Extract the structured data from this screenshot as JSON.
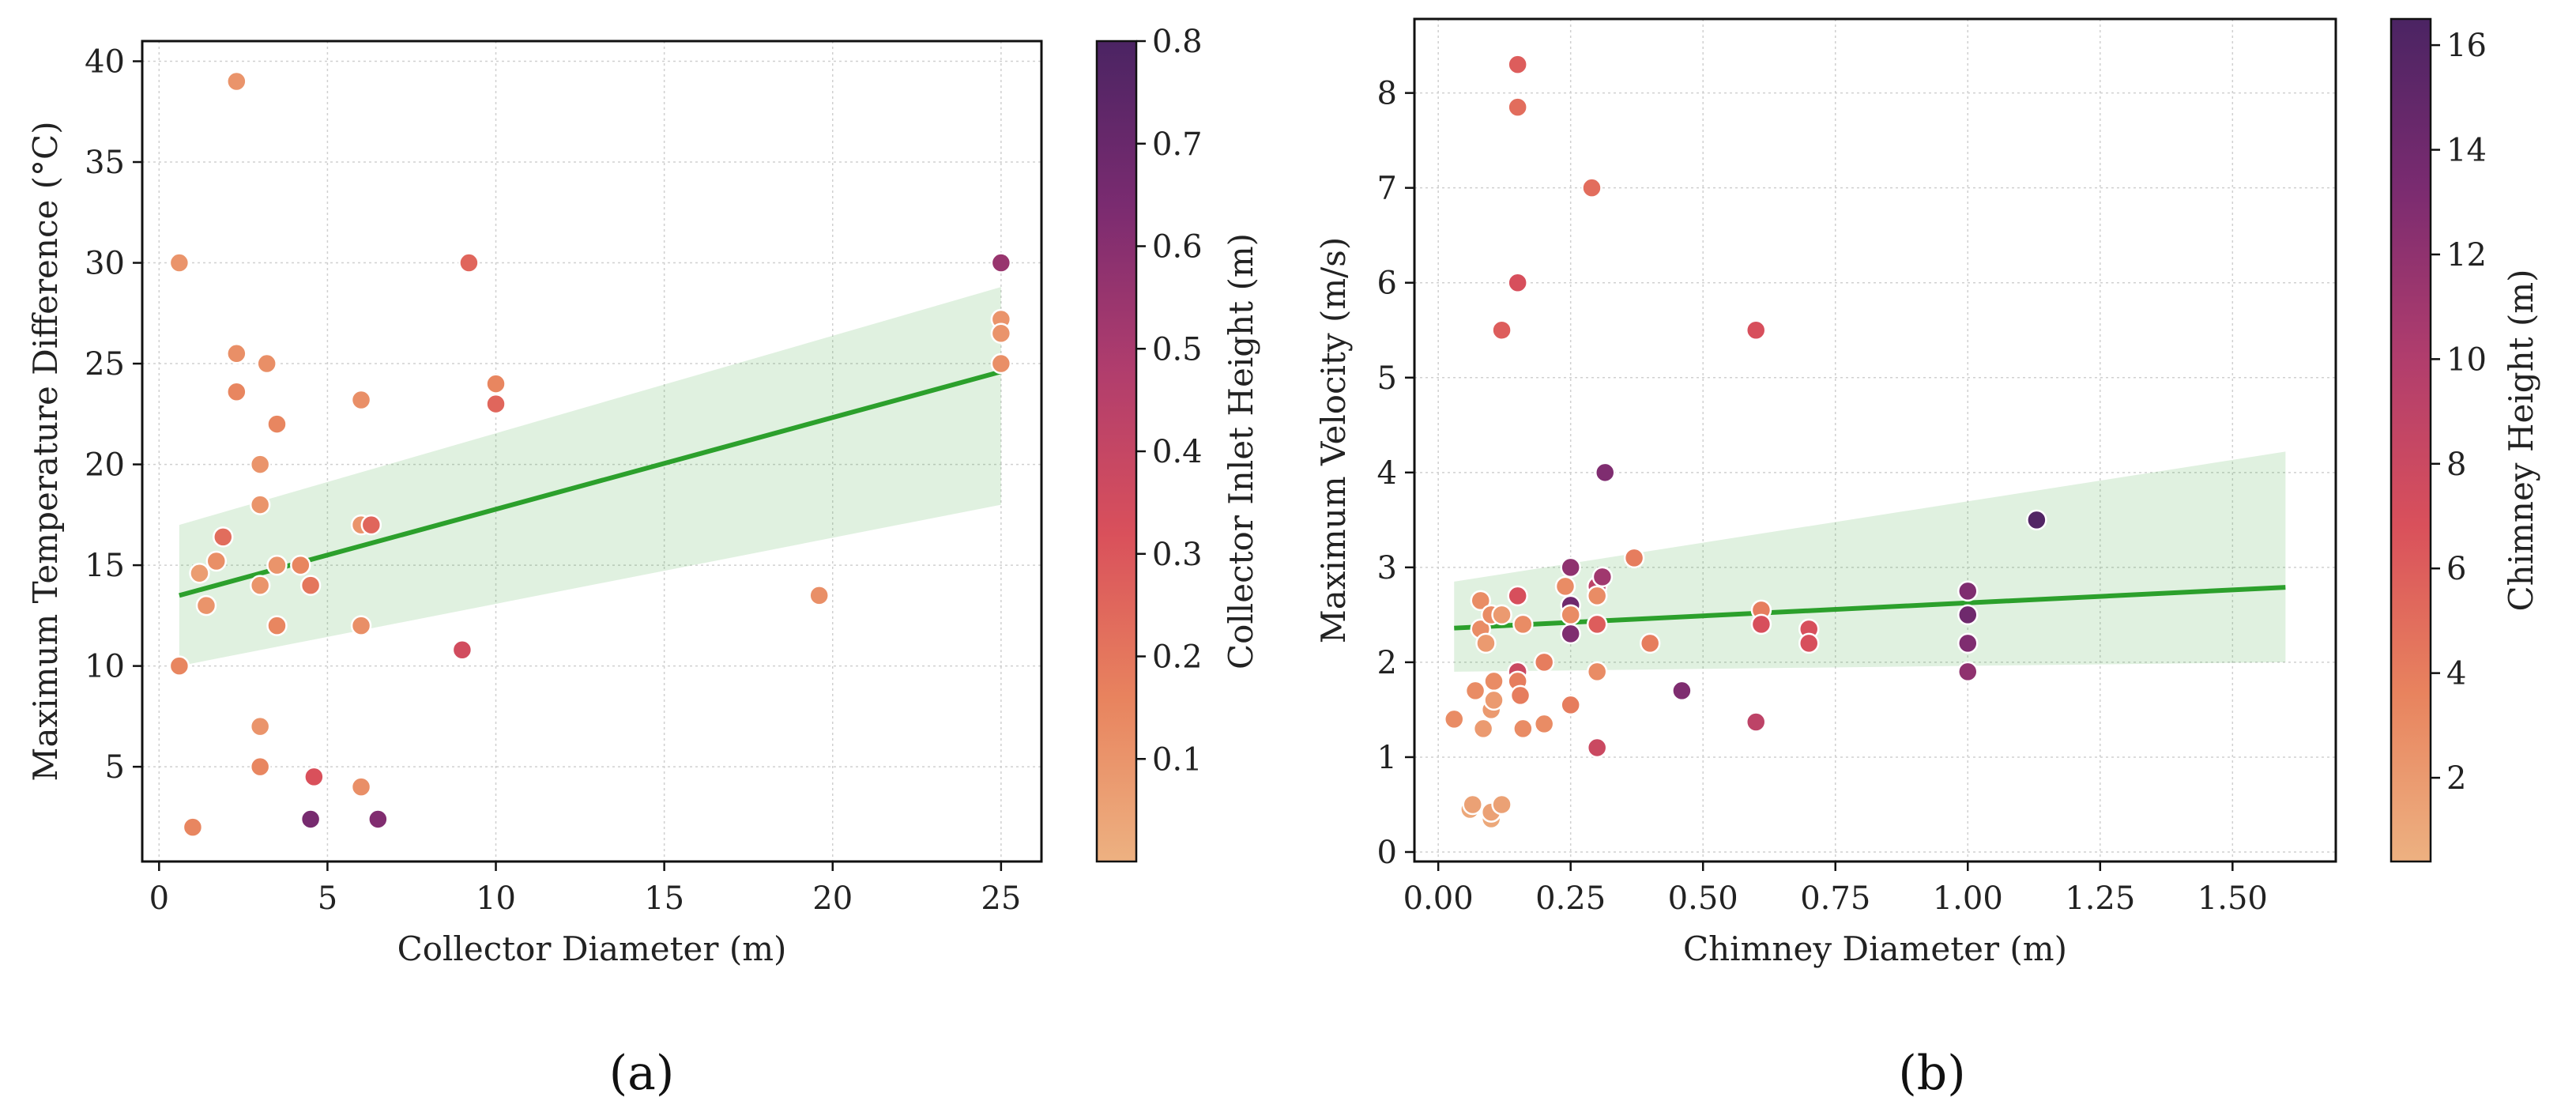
{
  "chart_data": [
    {
      "type": "scatter",
      "panel_label": "(a)",
      "xlabel": "Collector Diameter (m)",
      "ylabel": "Maximum Temperature Difference (°C)",
      "xlim": [
        -0.5,
        26.2
      ],
      "ylim": [
        0.3,
        41.0
      ],
      "xticks": [
        0,
        5,
        10,
        15,
        20,
        25
      ],
      "yticks": [
        5,
        10,
        15,
        20,
        25,
        30,
        35,
        40
      ],
      "grid": true,
      "colorbar": {
        "label": "Collector Inlet Height (m)",
        "range": [
          0.0,
          0.8
        ],
        "ticks": [
          0.1,
          0.2,
          0.3,
          0.4,
          0.5,
          0.6,
          0.7,
          0.8
        ],
        "colormap": "flare"
      },
      "regression": {
        "x": [
          0.6,
          25.0
        ],
        "y": [
          13.5,
          24.6
        ],
        "ci_lower": [
          10.0,
          18.0
        ],
        "ci_upper": [
          17.0,
          28.8
        ],
        "color": "#2ca02c"
      },
      "points": [
        {
          "x": 0.6,
          "y": 30,
          "c": 0.1
        },
        {
          "x": 0.6,
          "y": 10,
          "c": 0.15
        },
        {
          "x": 1.0,
          "y": 2,
          "c": 0.15
        },
        {
          "x": 1.2,
          "y": 14.6,
          "c": 0.07
        },
        {
          "x": 1.4,
          "y": 13,
          "c": 0.1
        },
        {
          "x": 1.7,
          "y": 15.2,
          "c": 0.12
        },
        {
          "x": 1.9,
          "y": 16.4,
          "c": 0.23
        },
        {
          "x": 2.3,
          "y": 39,
          "c": 0.1
        },
        {
          "x": 2.3,
          "y": 25.5,
          "c": 0.12
        },
        {
          "x": 2.3,
          "y": 23.6,
          "c": 0.15
        },
        {
          "x": 3.0,
          "y": 20,
          "c": 0.1
        },
        {
          "x": 3.0,
          "y": 18,
          "c": 0.1
        },
        {
          "x": 3.0,
          "y": 14,
          "c": 0.1
        },
        {
          "x": 3.0,
          "y": 7,
          "c": 0.1
        },
        {
          "x": 3.0,
          "y": 5,
          "c": 0.15
        },
        {
          "x": 3.2,
          "y": 25,
          "c": 0.12
        },
        {
          "x": 3.5,
          "y": 22,
          "c": 0.15
        },
        {
          "x": 3.5,
          "y": 15,
          "c": 0.1
        },
        {
          "x": 3.5,
          "y": 12,
          "c": 0.15
        },
        {
          "x": 4.2,
          "y": 15,
          "c": 0.15
        },
        {
          "x": 4.5,
          "y": 14,
          "c": 0.2
        },
        {
          "x": 4.6,
          "y": 4.5,
          "c": 0.32
        },
        {
          "x": 4.5,
          "y": 2.4,
          "c": 0.65
        },
        {
          "x": 6.0,
          "y": 23.2,
          "c": 0.12
        },
        {
          "x": 6.0,
          "y": 17,
          "c": 0.1
        },
        {
          "x": 6.0,
          "y": 12,
          "c": 0.12
        },
        {
          "x": 6.0,
          "y": 4,
          "c": 0.12
        },
        {
          "x": 6.3,
          "y": 17,
          "c": 0.25
        },
        {
          "x": 6.5,
          "y": 2.4,
          "c": 0.62
        },
        {
          "x": 9.0,
          "y": 10.8,
          "c": 0.35
        },
        {
          "x": 9.2,
          "y": 30,
          "c": 0.25
        },
        {
          "x": 10.0,
          "y": 24,
          "c": 0.15
        },
        {
          "x": 10.0,
          "y": 23,
          "c": 0.25
        },
        {
          "x": 19.6,
          "y": 13.5,
          "c": 0.12
        },
        {
          "x": 25.0,
          "y": 30,
          "c": 0.55
        },
        {
          "x": 25.0,
          "y": 27.2,
          "c": 0.1
        },
        {
          "x": 25.0,
          "y": 26.5,
          "c": 0.1
        },
        {
          "x": 25.0,
          "y": 25,
          "c": 0.12
        }
      ]
    },
    {
      "type": "scatter",
      "panel_label": "(b)",
      "xlabel": "Chimney Diameter (m)",
      "ylabel": "Maximum Velocity (m/s)",
      "xlim": [
        -0.045,
        1.695
      ],
      "ylim": [
        -0.1,
        8.78
      ],
      "xticks": [
        0.0,
        0.25,
        0.5,
        0.75,
        1.0,
        1.25,
        1.5
      ],
      "xtick_labels": [
        "0.00",
        "0.25",
        "0.50",
        "0.75",
        "1.00",
        "1.25",
        "1.50"
      ],
      "yticks": [
        0,
        1,
        2,
        3,
        4,
        5,
        6,
        7,
        8
      ],
      "grid": true,
      "colorbar": {
        "label": "Chimney Height (m)",
        "range": [
          0.4,
          16.5
        ],
        "ticks": [
          2,
          4,
          6,
          8,
          10,
          12,
          14,
          16
        ],
        "colormap": "flare"
      },
      "regression": {
        "x": [
          0.03,
          1.6
        ],
        "y": [
          2.36,
          2.79
        ],
        "ci_lower": [
          1.9,
          2.0
        ],
        "ci_upper": [
          2.85,
          4.22
        ],
        "color": "#2ca02c"
      },
      "points": [
        {
          "x": 0.03,
          "y": 1.4,
          "c": 3
        },
        {
          "x": 0.06,
          "y": 0.45,
          "c": 1
        },
        {
          "x": 0.065,
          "y": 0.5,
          "c": 1.5
        },
        {
          "x": 0.07,
          "y": 1.7,
          "c": 3
        },
        {
          "x": 0.08,
          "y": 2.65,
          "c": 3
        },
        {
          "x": 0.08,
          "y": 2.35,
          "c": 3
        },
        {
          "x": 0.085,
          "y": 1.3,
          "c": 2
        },
        {
          "x": 0.09,
          "y": 2.2,
          "c": 2
        },
        {
          "x": 0.1,
          "y": 2.5,
          "c": 3
        },
        {
          "x": 0.1,
          "y": 1.5,
          "c": 2
        },
        {
          "x": 0.1,
          "y": 0.35,
          "c": 1
        },
        {
          "x": 0.1,
          "y": 0.42,
          "c": 1.5
        },
        {
          "x": 0.105,
          "y": 1.8,
          "c": 3
        },
        {
          "x": 0.105,
          "y": 1.6,
          "c": 2
        },
        {
          "x": 0.12,
          "y": 2.5,
          "c": 2
        },
        {
          "x": 0.12,
          "y": 0.5,
          "c": 1.5
        },
        {
          "x": 0.12,
          "y": 5.5,
          "c": 6
        },
        {
          "x": 0.15,
          "y": 8.3,
          "c": 6
        },
        {
          "x": 0.15,
          "y": 7.85,
          "c": 5
        },
        {
          "x": 0.15,
          "y": 6.0,
          "c": 7
        },
        {
          "x": 0.15,
          "y": 2.7,
          "c": 7
        },
        {
          "x": 0.15,
          "y": 1.9,
          "c": 8
        },
        {
          "x": 0.15,
          "y": 1.8,
          "c": 4
        },
        {
          "x": 0.155,
          "y": 1.65,
          "c": 4
        },
        {
          "x": 0.16,
          "y": 2.4,
          "c": 3
        },
        {
          "x": 0.16,
          "y": 1.3,
          "c": 3
        },
        {
          "x": 0.2,
          "y": 2.0,
          "c": 4
        },
        {
          "x": 0.2,
          "y": 1.35,
          "c": 3
        },
        {
          "x": 0.24,
          "y": 2.8,
          "c": 3
        },
        {
          "x": 0.25,
          "y": 3.0,
          "c": 12
        },
        {
          "x": 0.25,
          "y": 2.6,
          "c": 14
        },
        {
          "x": 0.25,
          "y": 2.5,
          "c": 3
        },
        {
          "x": 0.25,
          "y": 2.3,
          "c": 13
        },
        {
          "x": 0.25,
          "y": 1.55,
          "c": 4
        },
        {
          "x": 0.29,
          "y": 7.0,
          "c": 5
        },
        {
          "x": 0.3,
          "y": 2.8,
          "c": 9
        },
        {
          "x": 0.3,
          "y": 2.7,
          "c": 3
        },
        {
          "x": 0.3,
          "y": 2.4,
          "c": 6
        },
        {
          "x": 0.3,
          "y": 1.9,
          "c": 3
        },
        {
          "x": 0.3,
          "y": 1.1,
          "c": 8
        },
        {
          "x": 0.31,
          "y": 2.9,
          "c": 11
        },
        {
          "x": 0.315,
          "y": 4.0,
          "c": 13
        },
        {
          "x": 0.37,
          "y": 3.1,
          "c": 4
        },
        {
          "x": 0.4,
          "y": 2.2,
          "c": 4
        },
        {
          "x": 0.46,
          "y": 1.7,
          "c": 13
        },
        {
          "x": 0.6,
          "y": 5.5,
          "c": 7
        },
        {
          "x": 0.6,
          "y": 1.37,
          "c": 9
        },
        {
          "x": 0.61,
          "y": 2.55,
          "c": 4
        },
        {
          "x": 0.61,
          "y": 2.4,
          "c": 7
        },
        {
          "x": 0.7,
          "y": 2.35,
          "c": 7
        },
        {
          "x": 0.7,
          "y": 2.2,
          "c": 7
        },
        {
          "x": 1.0,
          "y": 2.75,
          "c": 13
        },
        {
          "x": 1.0,
          "y": 2.5,
          "c": 14
        },
        {
          "x": 1.0,
          "y": 2.2,
          "c": 13
        },
        {
          "x": 1.0,
          "y": 1.9,
          "c": 12
        },
        {
          "x": 1.13,
          "y": 3.5,
          "c": 16
        }
      ]
    }
  ]
}
